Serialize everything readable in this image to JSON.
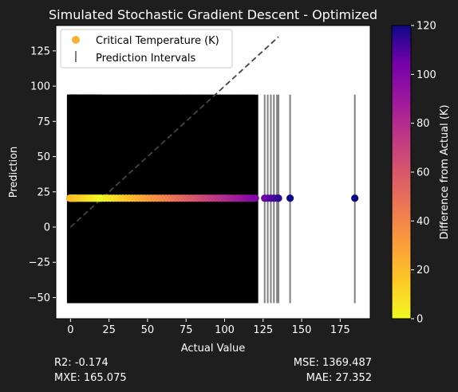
{
  "chart_data": {
    "type": "scatter",
    "title": "Simulated Stochastic Gradient Descent - Optimized",
    "xlabel": "Actual Value",
    "ylabel": "Prediction",
    "xlim": [
      -9.5,
      194.5
    ],
    "ylim": [
      -65,
      143
    ],
    "xticks": [
      0,
      25,
      50,
      75,
      100,
      125,
      150,
      175
    ],
    "yticks": [
      -50,
      -25,
      0,
      25,
      50,
      75,
      100,
      125
    ],
    "grid": false,
    "legend": {
      "placement": "top-left",
      "entries": [
        "Critical Temperature (K)",
        "Prediction Intervals"
      ]
    },
    "prediction_value": 20.5,
    "interval": {
      "low": -54,
      "high": 94
    },
    "reference_line": {
      "x0": 0,
      "y0": 0,
      "x1": 135,
      "y1": 135
    },
    "colorbar": {
      "label": "Difference from Actual (K)",
      "min": 0,
      "max": 120,
      "ticks": [
        0,
        20,
        40,
        60,
        80,
        100,
        120
      ],
      "colormap": "plasma_r"
    },
    "series": [
      {
        "x": [
          -0.5,
          0.0,
          0.5,
          1.0,
          1.5,
          2.0,
          2.5,
          3.0,
          3.5,
          4.0,
          5.0,
          6.0,
          7.0,
          8.0,
          9.0,
          10.0,
          11.0,
          12.0,
          13.0,
          14.0,
          15.0,
          16.0,
          17.0,
          18.0,
          19.0,
          20.0,
          22.0,
          24.0,
          26.0,
          28.0,
          30.0,
          32.0,
          34.0,
          36.0,
          38.0,
          40.0,
          42.0,
          44.0,
          46.0,
          48.0,
          50.0,
          52.0,
          54.0,
          56.0,
          58.0,
          60.0,
          62.0,
          64.0,
          66.0,
          68.0,
          70.0,
          72.0,
          74.0,
          76.0,
          78.0,
          80.0,
          82.0,
          84.0,
          86.0,
          88.0,
          90.0,
          92.0,
          94.0,
          96.0,
          98.0,
          100.0,
          102.0,
          104.0,
          106.0,
          108.0,
          110.0,
          112.0,
          114.0,
          116.0,
          118.0,
          120.0,
          126.0,
          128.0,
          130.0,
          132.0,
          134.0,
          135.0,
          142.5,
          184.5
        ],
        "y": [
          20.5,
          20.5,
          20.5,
          20.5,
          20.5,
          20.5,
          20.5,
          20.5,
          20.5,
          20.5,
          20.5,
          20.5,
          20.5,
          20.5,
          20.5,
          20.5,
          20.5,
          20.5,
          20.5,
          20.5,
          20.5,
          20.5,
          20.5,
          20.5,
          20.5,
          20.5,
          20.5,
          20.5,
          20.5,
          20.5,
          20.5,
          20.5,
          20.5,
          20.5,
          20.5,
          20.5,
          20.5,
          20.5,
          20.5,
          20.5,
          20.5,
          20.5,
          20.5,
          20.5,
          20.5,
          20.5,
          20.5,
          20.5,
          20.5,
          20.5,
          20.5,
          20.5,
          20.5,
          20.5,
          20.5,
          20.5,
          20.5,
          20.5,
          20.5,
          20.5,
          20.5,
          20.5,
          20.5,
          20.5,
          20.5,
          20.5,
          20.5,
          20.5,
          20.5,
          20.5,
          20.5,
          20.5,
          20.5,
          20.5,
          20.5,
          20.5,
          20.5,
          20.5,
          20.5,
          20.5,
          20.5,
          20.5,
          20.5,
          20.5
        ]
      }
    ]
  },
  "metrics": {
    "r2": "R2: -0.174",
    "mxe": "MXE: 165.075",
    "mse": "MSE: 1369.487",
    "mae": "MAE: 27.352"
  },
  "colors": {
    "figure_bg": "#1e1e1e",
    "axes_bg": "#ffffff",
    "interval_fill": "#000000",
    "interval_line": "#808080",
    "reference_line": "#444444"
  }
}
